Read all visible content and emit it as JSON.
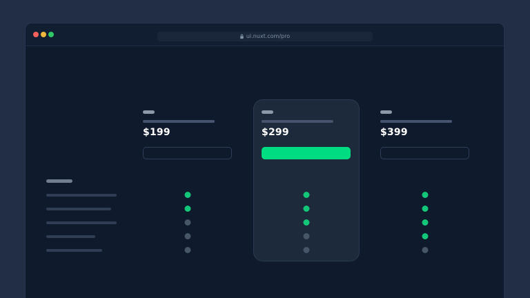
{
  "window": {
    "traffic_lights": [
      {
        "icon": "close-window-icon",
        "color": "#f4605c"
      },
      {
        "icon": "minimize-window-icon",
        "color": "#f2b63c"
      },
      {
        "icon": "maximize-window-icon",
        "color": "#2ec866"
      }
    ],
    "address_bar": {
      "icon": "lock-icon",
      "url": "ui.nuxt.com/pro"
    }
  },
  "pricing": {
    "tiers": [
      {
        "price": "$199",
        "highlighted": false,
        "features": [
          true,
          true,
          false,
          false,
          false
        ]
      },
      {
        "price": "$299",
        "highlighted": true,
        "features": [
          true,
          true,
          true,
          false,
          false
        ]
      },
      {
        "price": "$399",
        "highlighted": false,
        "features": [
          true,
          true,
          true,
          true,
          false
        ]
      }
    ]
  },
  "colors": {
    "page_background": "#222e44",
    "window_background": "#0f1a2c",
    "titlebar_background": "#111d31",
    "window_border": "#263350",
    "divider": "#1e2b42",
    "address_bar_background": "#1a2639",
    "address_bar_text": "#8092a6",
    "card_background": "#1d2a3c",
    "card_border": "#2c3b54",
    "accent_green": "#00dc82",
    "dot_green": "#12c878",
    "dot_gray": "#475569",
    "skeleton_light": "#8d98a9",
    "skeleton_mid": "#46546e",
    "skeleton_heading": "#717d90",
    "skeleton_row": "#2f3d55",
    "price_text": "#ffffff",
    "outline_button_border": "#2e3d58",
    "traffic_red": "#f4605c",
    "traffic_yellow": "#f2b63c",
    "traffic_green": "#2ec866"
  }
}
